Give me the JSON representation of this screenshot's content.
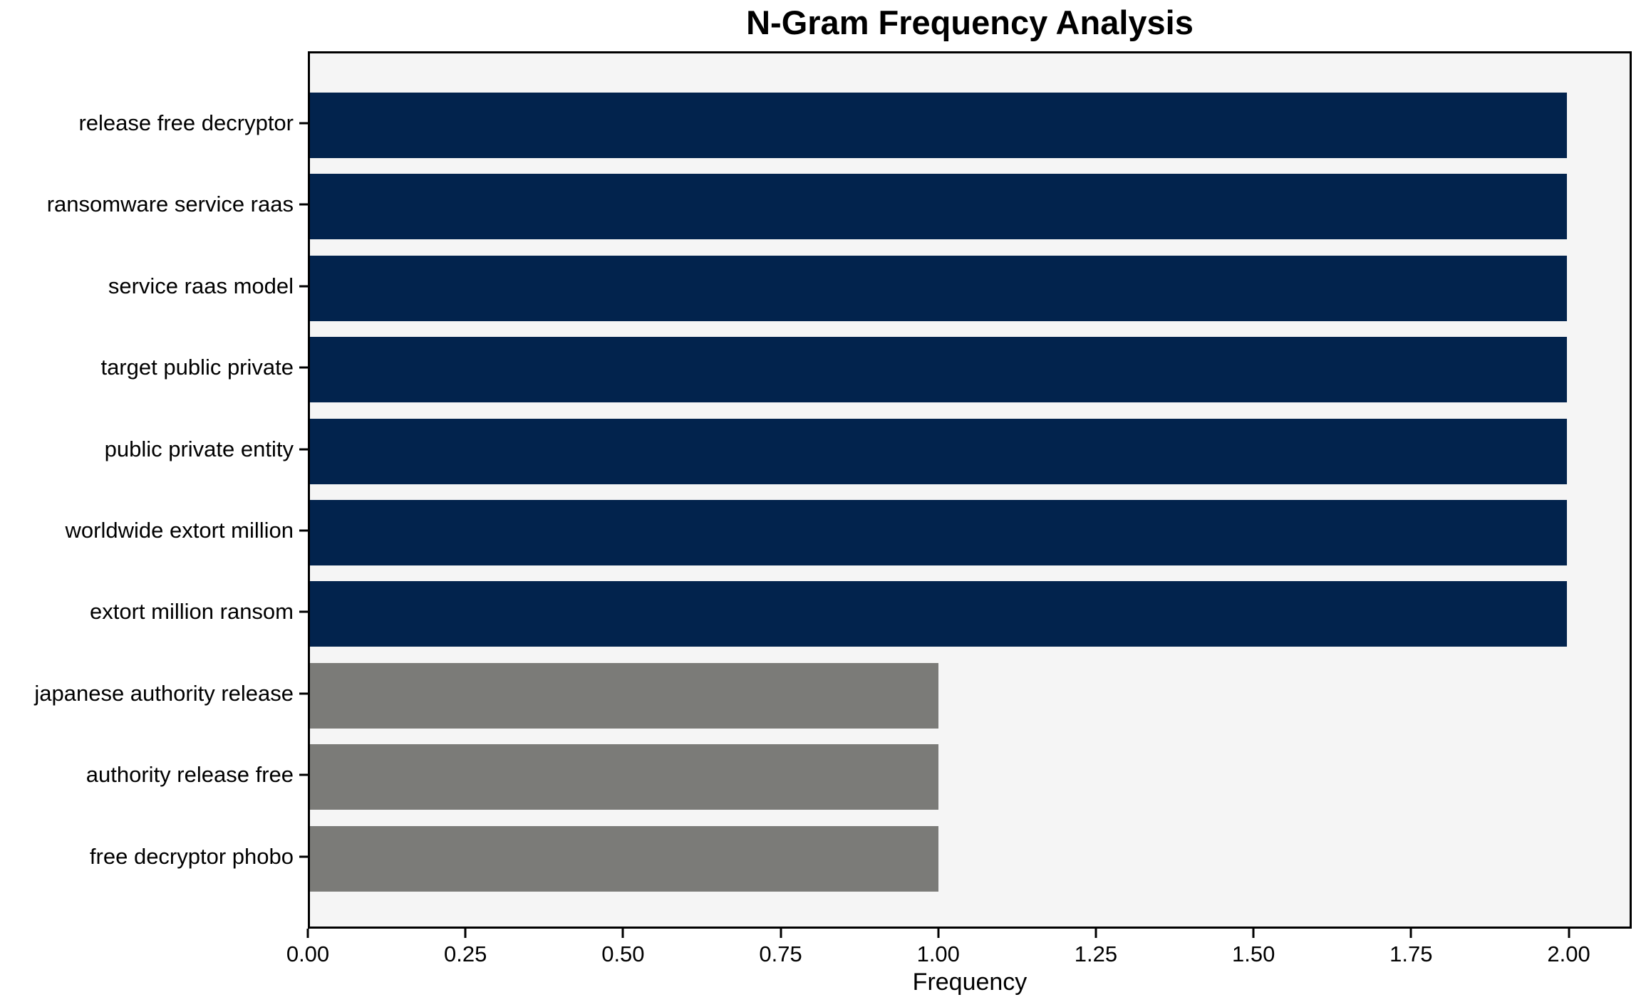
{
  "chart_data": {
    "type": "bar",
    "orientation": "horizontal",
    "title": "N-Gram Frequency Analysis",
    "xlabel": "Frequency",
    "ylabel": "",
    "categories": [
      "release free decryptor",
      "ransomware service raas",
      "service raas model",
      "target public private",
      "public private entity",
      "worldwide extort million",
      "extort million ransom",
      "japanese authority release",
      "authority release free",
      "free decryptor phobo"
    ],
    "values": [
      2,
      2,
      2,
      2,
      2,
      2,
      2,
      1,
      1,
      1
    ],
    "bar_colors": [
      "#02234d",
      "#02234d",
      "#02234d",
      "#02234d",
      "#02234d",
      "#02234d",
      "#02234d",
      "#7b7b78",
      "#7b7b78",
      "#7b7b78"
    ],
    "xlim": [
      0,
      2.1
    ],
    "xticks": [
      {
        "value": 0.0,
        "label": "0.00"
      },
      {
        "value": 0.25,
        "label": "0.25"
      },
      {
        "value": 0.5,
        "label": "0.50"
      },
      {
        "value": 0.75,
        "label": "0.75"
      },
      {
        "value": 1.0,
        "label": "1.00"
      },
      {
        "value": 1.25,
        "label": "1.25"
      },
      {
        "value": 1.5,
        "label": "1.50"
      },
      {
        "value": 1.75,
        "label": "1.75"
      },
      {
        "value": 2.0,
        "label": "2.00"
      }
    ],
    "grid": false,
    "legend": null,
    "plot_background": "#f5f5f5",
    "figure_background": "#ffffff",
    "spine_color": "#000000"
  }
}
